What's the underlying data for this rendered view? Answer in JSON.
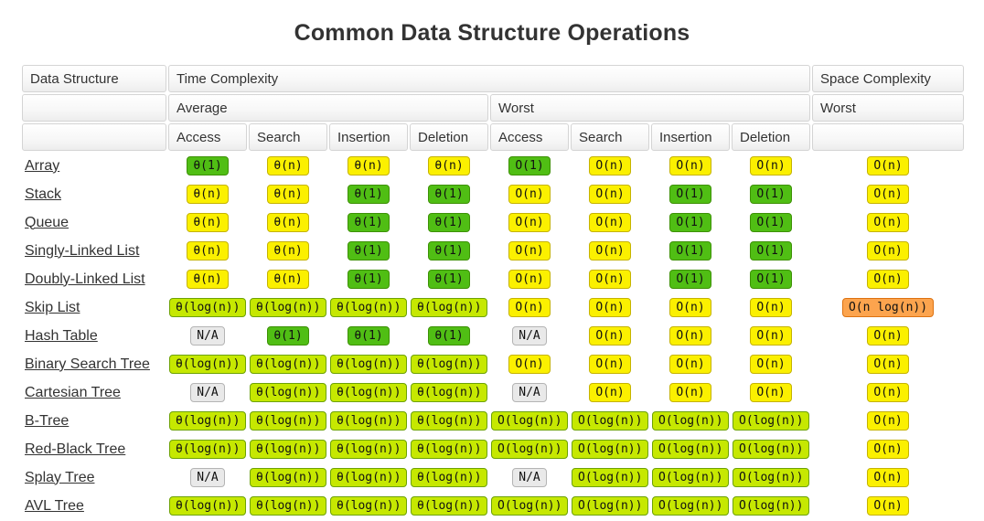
{
  "title": "Common Data Structure Operations",
  "colors": {
    "green": "#50BE14",
    "green_border": "#3D9106",
    "yellow": "#FBF000",
    "yellow_border": "#C5B300",
    "yellowgreen": "#C6E801",
    "yellowgreen_border": "#6DA203",
    "orange": "#FCA44E",
    "orange_border": "#DD7211",
    "gray": "#E9E9E9",
    "gray_border": "#B4B4B4"
  },
  "table": {
    "header": {
      "data_structure": "Data Structure",
      "time_complexity": "Time Complexity",
      "space_complexity": "Space Complexity",
      "average": "Average",
      "worst": "Worst",
      "space_worst": "Worst",
      "ops": [
        "Access",
        "Search",
        "Insertion",
        "Deletion",
        "Access",
        "Search",
        "Insertion",
        "Deletion"
      ]
    },
    "rows": [
      {
        "label": "Array",
        "cells": [
          [
            "θ(1)",
            "green"
          ],
          [
            "θ(n)",
            "yellow"
          ],
          [
            "θ(n)",
            "yellow"
          ],
          [
            "θ(n)",
            "yellow"
          ],
          [
            "O(1)",
            "green"
          ],
          [
            "O(n)",
            "yellow"
          ],
          [
            "O(n)",
            "yellow"
          ],
          [
            "O(n)",
            "yellow"
          ],
          [
            "O(n)",
            "yellow"
          ]
        ]
      },
      {
        "label": "Stack",
        "cells": [
          [
            "θ(n)",
            "yellow"
          ],
          [
            "θ(n)",
            "yellow"
          ],
          [
            "θ(1)",
            "green"
          ],
          [
            "θ(1)",
            "green"
          ],
          [
            "O(n)",
            "yellow"
          ],
          [
            "O(n)",
            "yellow"
          ],
          [
            "O(1)",
            "green"
          ],
          [
            "O(1)",
            "green"
          ],
          [
            "O(n)",
            "yellow"
          ]
        ]
      },
      {
        "label": "Queue",
        "cells": [
          [
            "θ(n)",
            "yellow"
          ],
          [
            "θ(n)",
            "yellow"
          ],
          [
            "θ(1)",
            "green"
          ],
          [
            "θ(1)",
            "green"
          ],
          [
            "O(n)",
            "yellow"
          ],
          [
            "O(n)",
            "yellow"
          ],
          [
            "O(1)",
            "green"
          ],
          [
            "O(1)",
            "green"
          ],
          [
            "O(n)",
            "yellow"
          ]
        ]
      },
      {
        "label": "Singly-Linked List",
        "cells": [
          [
            "θ(n)",
            "yellow"
          ],
          [
            "θ(n)",
            "yellow"
          ],
          [
            "θ(1)",
            "green"
          ],
          [
            "θ(1)",
            "green"
          ],
          [
            "O(n)",
            "yellow"
          ],
          [
            "O(n)",
            "yellow"
          ],
          [
            "O(1)",
            "green"
          ],
          [
            "O(1)",
            "green"
          ],
          [
            "O(n)",
            "yellow"
          ]
        ]
      },
      {
        "label": "Doubly-Linked List",
        "cells": [
          [
            "θ(n)",
            "yellow"
          ],
          [
            "θ(n)",
            "yellow"
          ],
          [
            "θ(1)",
            "green"
          ],
          [
            "θ(1)",
            "green"
          ],
          [
            "O(n)",
            "yellow"
          ],
          [
            "O(n)",
            "yellow"
          ],
          [
            "O(1)",
            "green"
          ],
          [
            "O(1)",
            "green"
          ],
          [
            "O(n)",
            "yellow"
          ]
        ]
      },
      {
        "label": "Skip List",
        "cells": [
          [
            "θ(log(n))",
            "yellowgreen"
          ],
          [
            "θ(log(n))",
            "yellowgreen"
          ],
          [
            "θ(log(n))",
            "yellowgreen"
          ],
          [
            "θ(log(n))",
            "yellowgreen"
          ],
          [
            "O(n)",
            "yellow"
          ],
          [
            "O(n)",
            "yellow"
          ],
          [
            "O(n)",
            "yellow"
          ],
          [
            "O(n)",
            "yellow"
          ],
          [
            "O(n log(n))",
            "orange"
          ]
        ]
      },
      {
        "label": "Hash Table",
        "cells": [
          [
            "N/A",
            "gray"
          ],
          [
            "θ(1)",
            "green"
          ],
          [
            "θ(1)",
            "green"
          ],
          [
            "θ(1)",
            "green"
          ],
          [
            "N/A",
            "gray"
          ],
          [
            "O(n)",
            "yellow"
          ],
          [
            "O(n)",
            "yellow"
          ],
          [
            "O(n)",
            "yellow"
          ],
          [
            "O(n)",
            "yellow"
          ]
        ]
      },
      {
        "label": "Binary Search Tree",
        "cells": [
          [
            "θ(log(n))",
            "yellowgreen"
          ],
          [
            "θ(log(n))",
            "yellowgreen"
          ],
          [
            "θ(log(n))",
            "yellowgreen"
          ],
          [
            "θ(log(n))",
            "yellowgreen"
          ],
          [
            "O(n)",
            "yellow"
          ],
          [
            "O(n)",
            "yellow"
          ],
          [
            "O(n)",
            "yellow"
          ],
          [
            "O(n)",
            "yellow"
          ],
          [
            "O(n)",
            "yellow"
          ]
        ]
      },
      {
        "label": "Cartesian Tree",
        "cells": [
          [
            "N/A",
            "gray"
          ],
          [
            "θ(log(n))",
            "yellowgreen"
          ],
          [
            "θ(log(n))",
            "yellowgreen"
          ],
          [
            "θ(log(n))",
            "yellowgreen"
          ],
          [
            "N/A",
            "gray"
          ],
          [
            "O(n)",
            "yellow"
          ],
          [
            "O(n)",
            "yellow"
          ],
          [
            "O(n)",
            "yellow"
          ],
          [
            "O(n)",
            "yellow"
          ]
        ]
      },
      {
        "label": "B-Tree",
        "cells": [
          [
            "θ(log(n))",
            "yellowgreen"
          ],
          [
            "θ(log(n))",
            "yellowgreen"
          ],
          [
            "θ(log(n))",
            "yellowgreen"
          ],
          [
            "θ(log(n))",
            "yellowgreen"
          ],
          [
            "O(log(n))",
            "yellowgreen"
          ],
          [
            "O(log(n))",
            "yellowgreen"
          ],
          [
            "O(log(n))",
            "yellowgreen"
          ],
          [
            "O(log(n))",
            "yellowgreen"
          ],
          [
            "O(n)",
            "yellow"
          ]
        ]
      },
      {
        "label": "Red-Black Tree",
        "cells": [
          [
            "θ(log(n))",
            "yellowgreen"
          ],
          [
            "θ(log(n))",
            "yellowgreen"
          ],
          [
            "θ(log(n))",
            "yellowgreen"
          ],
          [
            "θ(log(n))",
            "yellowgreen"
          ],
          [
            "O(log(n))",
            "yellowgreen"
          ],
          [
            "O(log(n))",
            "yellowgreen"
          ],
          [
            "O(log(n))",
            "yellowgreen"
          ],
          [
            "O(log(n))",
            "yellowgreen"
          ],
          [
            "O(n)",
            "yellow"
          ]
        ]
      },
      {
        "label": "Splay Tree",
        "cells": [
          [
            "N/A",
            "gray"
          ],
          [
            "θ(log(n))",
            "yellowgreen"
          ],
          [
            "θ(log(n))",
            "yellowgreen"
          ],
          [
            "θ(log(n))",
            "yellowgreen"
          ],
          [
            "N/A",
            "gray"
          ],
          [
            "O(log(n))",
            "yellowgreen"
          ],
          [
            "O(log(n))",
            "yellowgreen"
          ],
          [
            "O(log(n))",
            "yellowgreen"
          ],
          [
            "O(n)",
            "yellow"
          ]
        ]
      },
      {
        "label": "AVL Tree",
        "cells": [
          [
            "θ(log(n))",
            "yellowgreen"
          ],
          [
            "θ(log(n))",
            "yellowgreen"
          ],
          [
            "θ(log(n))",
            "yellowgreen"
          ],
          [
            "θ(log(n))",
            "yellowgreen"
          ],
          [
            "O(log(n))",
            "yellowgreen"
          ],
          [
            "O(log(n))",
            "yellowgreen"
          ],
          [
            "O(log(n))",
            "yellowgreen"
          ],
          [
            "O(log(n))",
            "yellowgreen"
          ],
          [
            "O(n)",
            "yellow"
          ]
        ]
      }
    ]
  }
}
